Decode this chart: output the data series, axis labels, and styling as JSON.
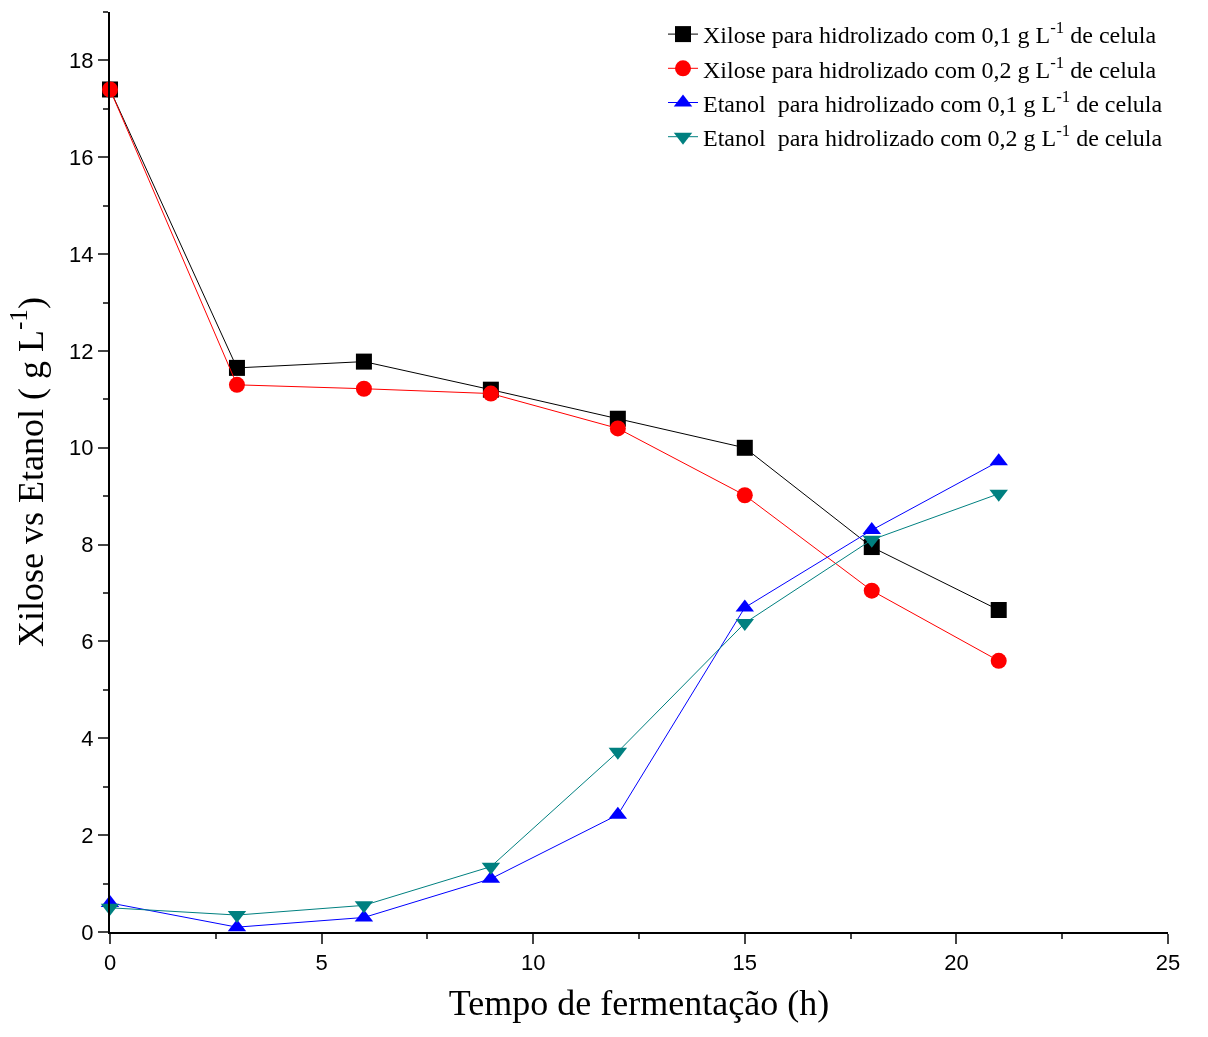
{
  "chart_data": {
    "type": "line",
    "xlabel": "Tempo de fermentação (h)",
    "ylabel": "Xilose vs Etanol ( g L$^{-1}$)",
    "x": [
      0,
      3,
      6,
      9,
      12,
      15,
      18,
      21
    ],
    "series": [
      {
        "name": "Xilose para hidrolizado com 0,1 g L$^{-1}$ de celula",
        "color": "#000000",
        "marker": "square",
        "values": [
          17.4,
          11.65,
          11.78,
          11.2,
          10.6,
          10.0,
          7.95,
          6.65
        ]
      },
      {
        "name": "Xilose para hidrolizado com 0,2 g L$^{-1}$ de celula",
        "color": "#ff0000",
        "marker": "circle",
        "values": [
          17.4,
          11.3,
          11.22,
          11.12,
          10.4,
          9.02,
          7.05,
          5.6
        ]
      },
      {
        "name": "Etanol  para hidrolizado com 0,1 g L$^{-1}$ de celula",
        "color": "#0000ff",
        "marker": "triangle",
        "values": [
          0.6,
          0.1,
          0.3,
          1.1,
          2.42,
          6.7,
          8.3,
          9.72
        ]
      },
      {
        "name": "Etanol  para hidrolizado com 0,2 g L$^{-1}$ de celula",
        "color": "#008080",
        "marker": "triangle-down",
        "values": [
          0.5,
          0.35,
          0.55,
          1.35,
          3.72,
          6.38,
          8.1,
          9.05
        ]
      }
    ],
    "xlim": [
      0,
      25
    ],
    "xticks": [
      0,
      5,
      10,
      15,
      20,
      25
    ],
    "ylim": [
      0,
      19
    ],
    "yticks": [
      0,
      2,
      4,
      6,
      8,
      10,
      12,
      14,
      16,
      18
    ],
    "legend": "top right",
    "line_style": "solid"
  }
}
